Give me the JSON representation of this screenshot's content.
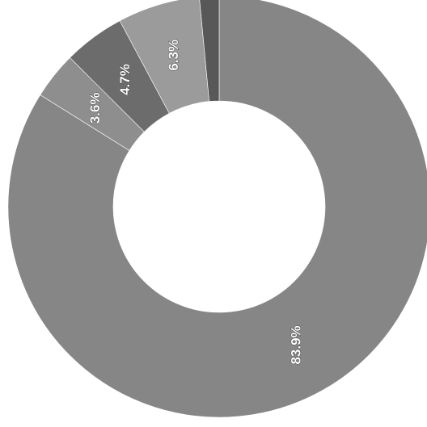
{
  "chart_data": {
    "type": "pie",
    "donut": true,
    "title": "",
    "slices": [
      {
        "label": "83.9%",
        "value": 83.9,
        "color": "#868686"
      },
      {
        "label": "3.6%",
        "value": 3.6,
        "color": "#8e8e8e"
      },
      {
        "label": "4.7%",
        "value": 4.7,
        "color": "#6c6c6c"
      },
      {
        "label": "6.3%",
        "value": 6.3,
        "color": "#9b9b9b"
      },
      {
        "label": "",
        "value": 1.5,
        "color": "#585858"
      }
    ]
  }
}
